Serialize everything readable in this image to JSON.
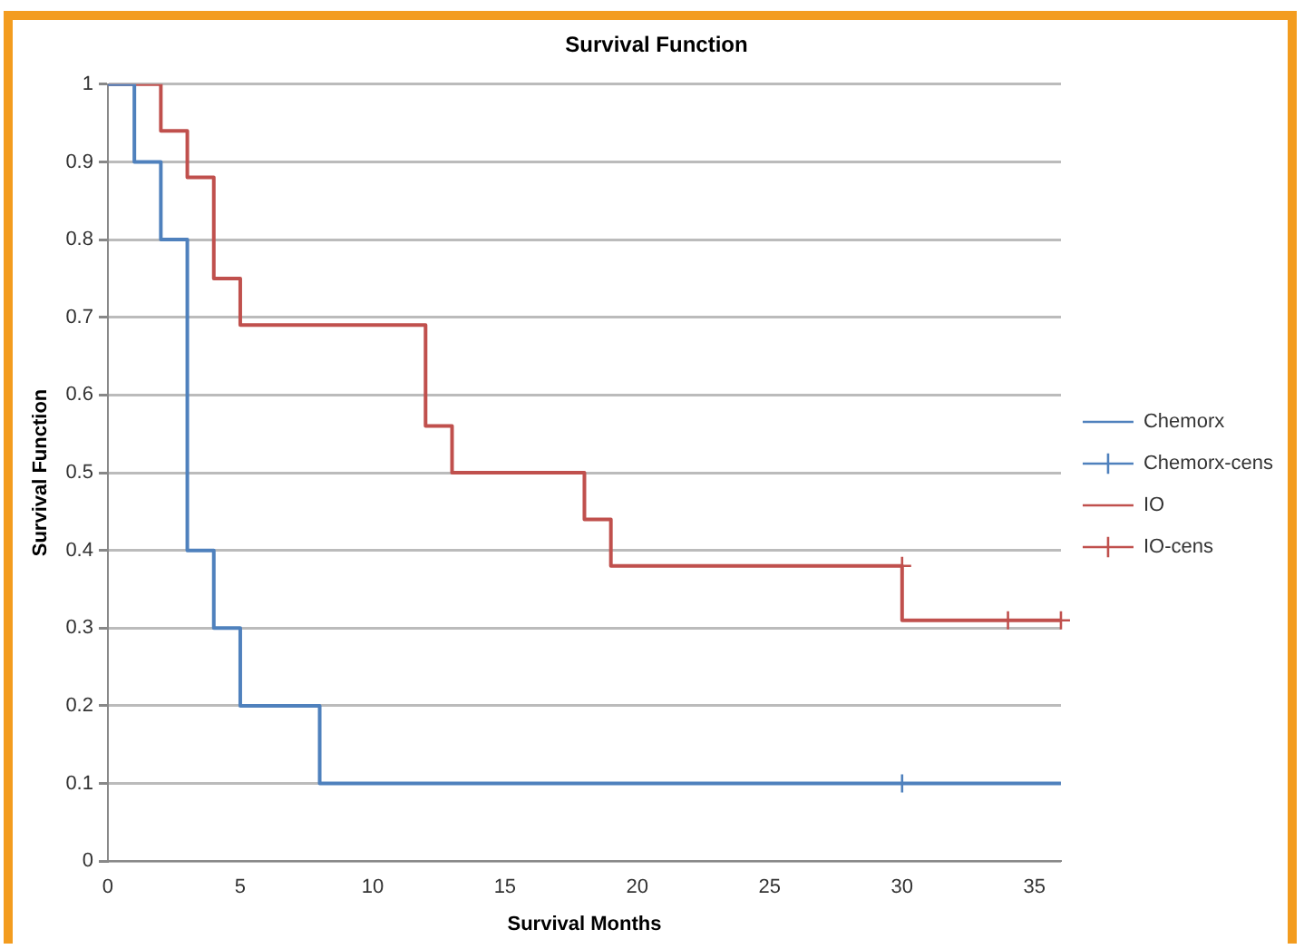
{
  "chart_data": {
    "type": "step",
    "title": "Survival Function",
    "xlabel": "Survival Months",
    "ylabel": "Survival Function",
    "xlim": [
      0,
      36
    ],
    "xticks": [
      0,
      5,
      10,
      15,
      20,
      25,
      30,
      35
    ],
    "ylim": [
      0,
      1
    ],
    "yticks": [
      0,
      0.1,
      0.2,
      0.3,
      0.4,
      0.5,
      0.6,
      0.7,
      0.8,
      0.9,
      1
    ],
    "grid": "y",
    "legend": "right",
    "series": [
      {
        "name": "Chemorx",
        "color": "#4f81bd",
        "marker": "none",
        "x": [
          0,
          1,
          2,
          3,
          4,
          5,
          8,
          36
        ],
        "values": [
          1,
          0.9,
          0.8,
          0.4,
          0.3,
          0.2,
          0.1,
          0.1
        ]
      },
      {
        "name": "Chemorx-cens",
        "type": "scatter",
        "color": "#4f81bd",
        "marker": "cross",
        "x": [
          30
        ],
        "values": [
          0.1
        ]
      },
      {
        "name": "IO",
        "color": "#c0504d",
        "marker": "none",
        "x": [
          0,
          2,
          3,
          4,
          5,
          12,
          13,
          18,
          19,
          30,
          36
        ],
        "values": [
          1,
          0.94,
          0.88,
          0.75,
          0.69,
          0.56,
          0.5,
          0.44,
          0.38,
          0.31,
          0.31
        ]
      },
      {
        "name": "IO-cens",
        "type": "scatter",
        "color": "#c0504d",
        "marker": "cross",
        "x": [
          30,
          34,
          36
        ],
        "values": [
          0.38,
          0.31,
          0.31
        ]
      }
    ]
  }
}
